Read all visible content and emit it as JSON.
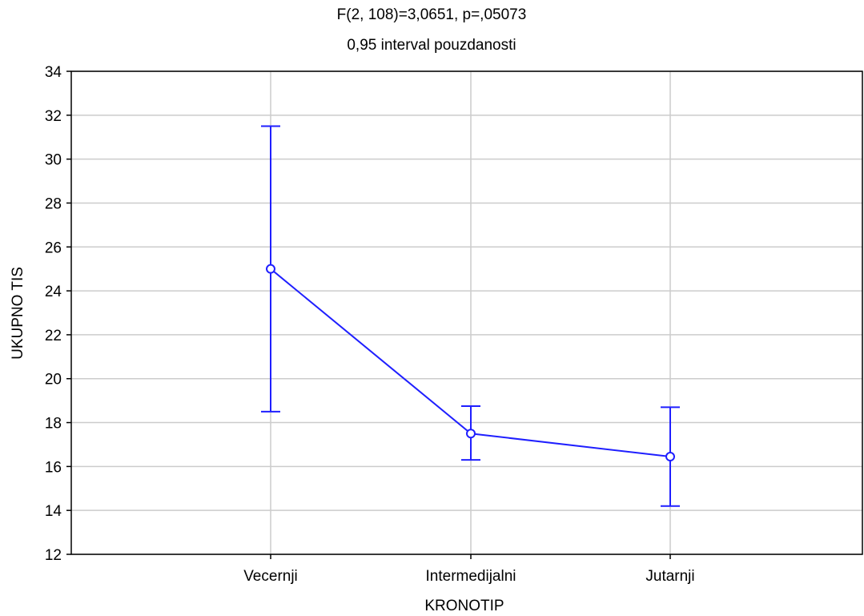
{
  "chart_data": {
    "type": "line",
    "title": "F(2, 108)=3,0651, p=,05073",
    "subtitle": "0,95 interval pouzdanosti",
    "xlabel": "KRONOTIP",
    "ylabel": "UKUPNO TIS",
    "categories": [
      "Vecernji",
      "Intermedijalni",
      "Jutarnji"
    ],
    "ylim": [
      12,
      34
    ],
    "yticks": [
      12,
      14,
      16,
      18,
      20,
      22,
      24,
      26,
      28,
      30,
      32,
      34
    ],
    "grid": true,
    "series": [
      {
        "means": [
          25.0,
          17.5,
          16.45
        ],
        "ci_lower": [
          18.5,
          16.3,
          14.2
        ],
        "ci_upper": [
          31.5,
          18.75,
          18.7
        ]
      }
    ],
    "colors": {
      "series": "#1f1fff",
      "grid": "#cccccc",
      "axis": "#000000"
    }
  }
}
